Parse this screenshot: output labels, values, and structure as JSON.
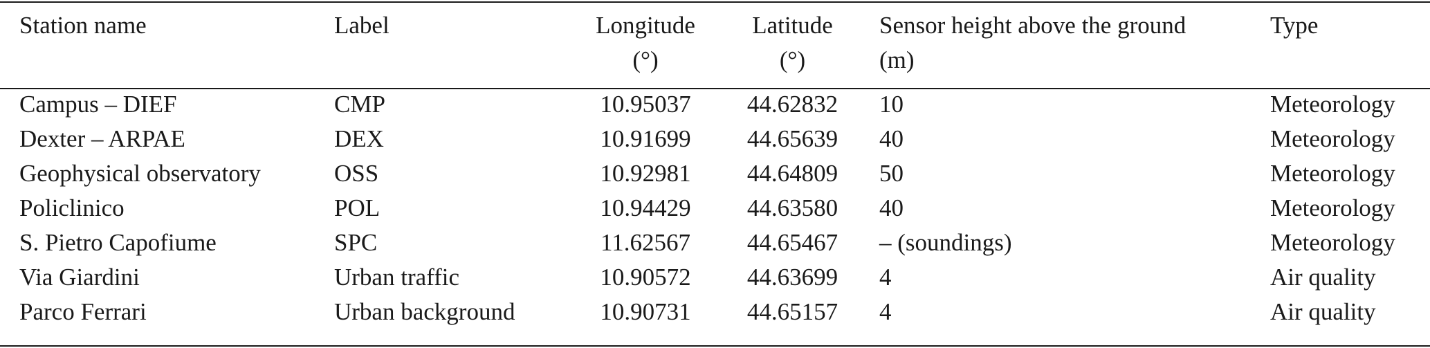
{
  "table": {
    "headers": {
      "station_name": "Station name",
      "label": "Label",
      "longitude_line1": "Longitude",
      "longitude_line2": "(°)",
      "latitude_line1": "Latitude",
      "latitude_line2": "(°)",
      "height_line1": "Sensor height above the ground",
      "height_line2": "(m)",
      "type": "Type"
    },
    "rows": [
      {
        "station_name": "Campus – DIEF",
        "label": "CMP",
        "longitude": "10.95037",
        "latitude": "44.62832",
        "height": "10",
        "type": "Meteorology"
      },
      {
        "station_name": "Dexter – ARPAE",
        "label": "DEX",
        "longitude": "10.91699",
        "latitude": "44.65639",
        "height": "40",
        "type": "Meteorology"
      },
      {
        "station_name": "Geophysical observatory",
        "label": "OSS",
        "longitude": "10.92981",
        "latitude": "44.64809",
        "height": "50",
        "type": "Meteorology"
      },
      {
        "station_name": "Policlinico",
        "label": "POL",
        "longitude": "10.94429",
        "latitude": "44.63580",
        "height": "40",
        "type": "Meteorology"
      },
      {
        "station_name": "S. Pietro Capofiume",
        "label": "SPC",
        "longitude": "11.62567",
        "latitude": "44.65467",
        "height": "– (soundings)",
        "type": "Meteorology"
      },
      {
        "station_name": "Via Giardini",
        "label": "Urban traffic",
        "longitude": "10.90572",
        "latitude": "44.63699",
        "height": "4",
        "type": "Air quality"
      },
      {
        "station_name": "Parco Ferrari",
        "label": "Urban background",
        "longitude": "10.90731",
        "latitude": "44.65157",
        "height": "4",
        "type": "Air quality"
      }
    ]
  }
}
